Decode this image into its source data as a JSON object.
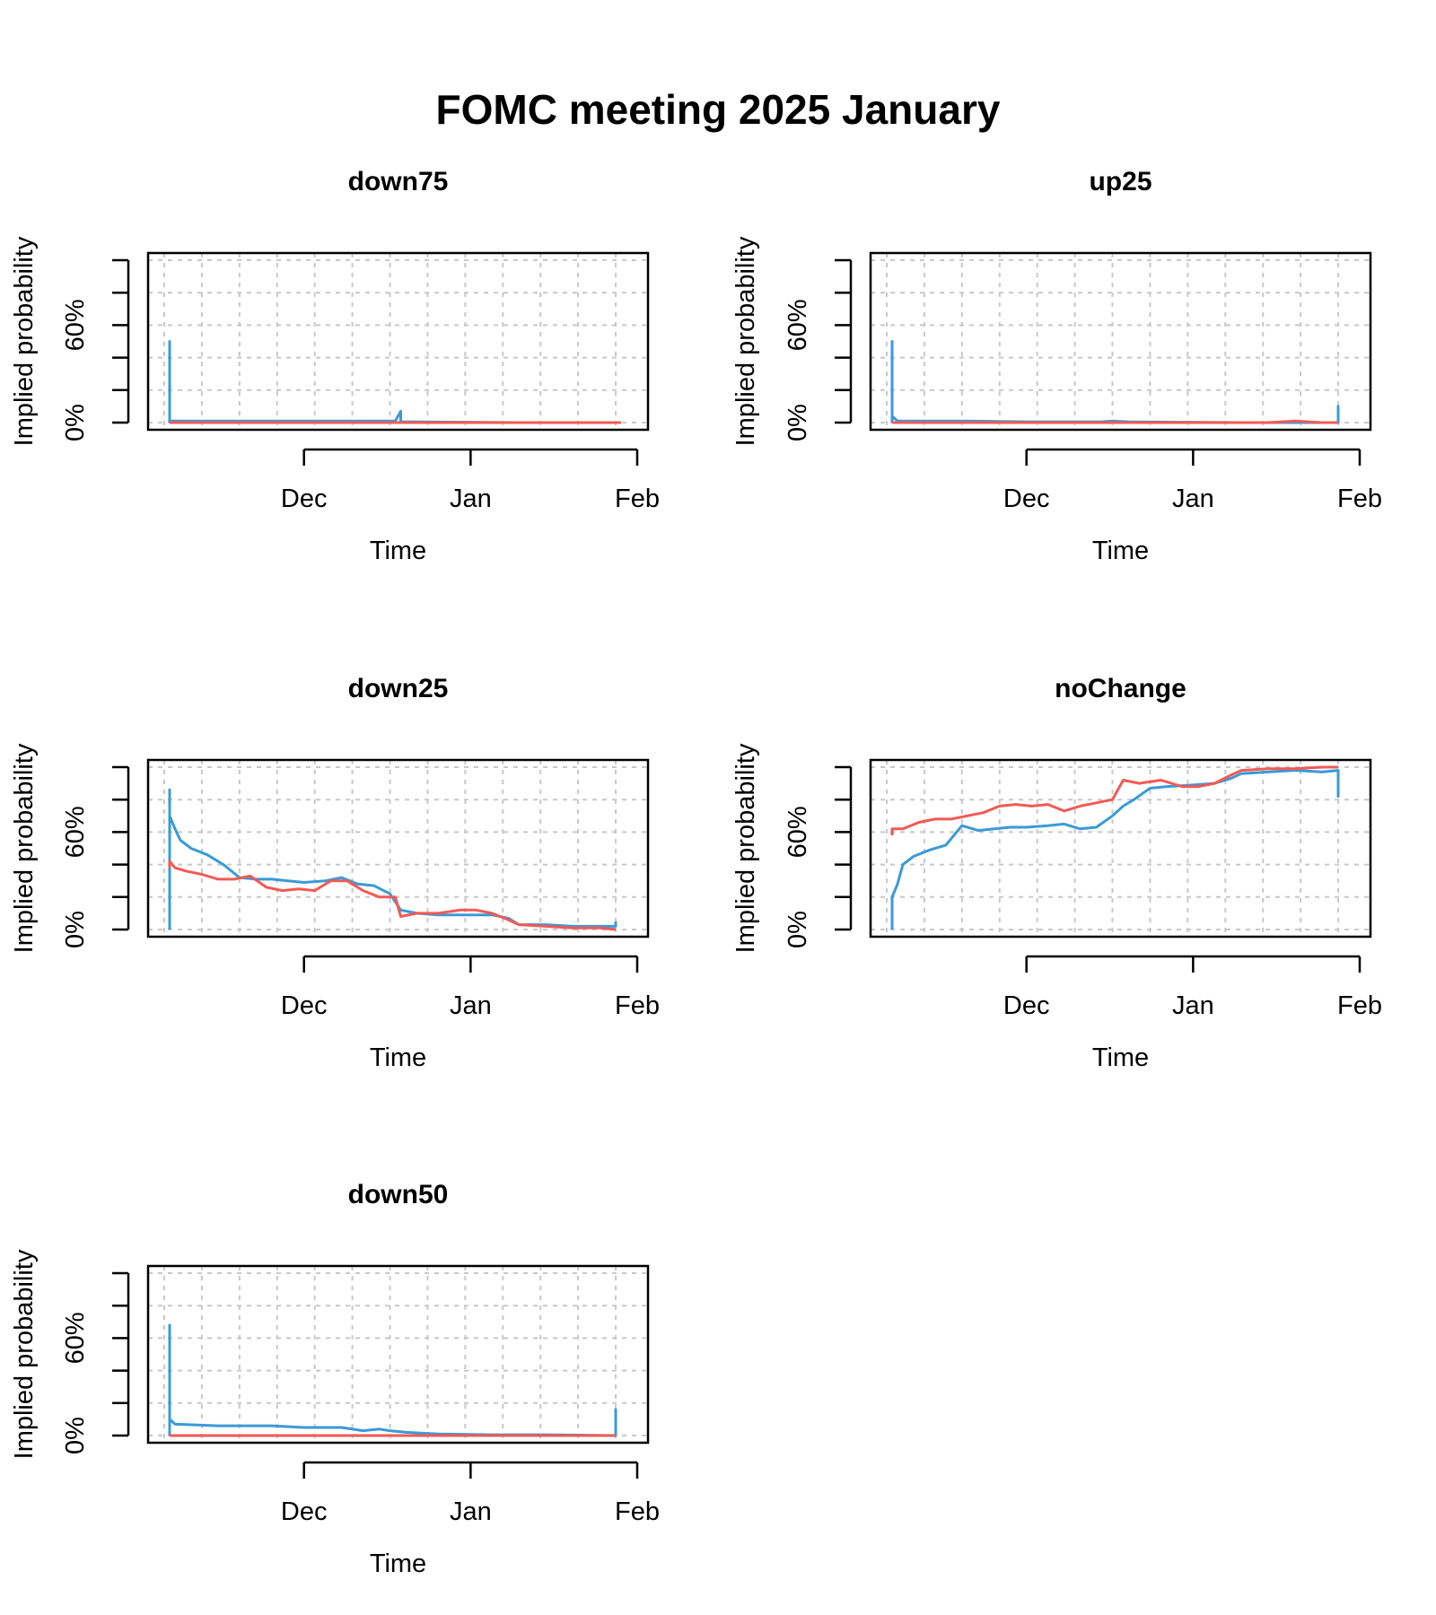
{
  "figure": {
    "title": "FOMC meeting 2025 January"
  },
  "colors": {
    "series_blue": "#3a9ad8",
    "series_red": "#f25a55",
    "grid": "#c8c8c8",
    "axis": "#000000"
  },
  "chart_data": [
    {
      "type": "line",
      "title": "down75",
      "xlabel": "Time",
      "ylabel": "Implied probability",
      "x_ticks": [
        {
          "date": "2024-12-01",
          "label": "Dec"
        },
        {
          "date": "2025-01-01",
          "label": "Jan"
        },
        {
          "date": "2025-02-01",
          "label": "Feb"
        }
      ],
      "xlim": [
        "2024-11-05",
        "2025-01-31"
      ],
      "y_ticks": [
        0,
        0.2,
        0.4,
        0.6,
        0.8,
        1.0
      ],
      "y_tick_labels": [
        {
          "value": 0,
          "label": "0%"
        },
        {
          "value": 0.6,
          "label": "60%"
        }
      ],
      "ylim": [
        0,
        1.0
      ],
      "grid": true,
      "series": [
        {
          "color": "blue",
          "points": [
            [
              "2024-11-06",
              0.0
            ],
            [
              "2024-11-06",
              0.5
            ],
            [
              "2024-11-06",
              0.04
            ],
            [
              "2024-11-06",
              0.01
            ],
            [
              "2024-11-10",
              0.01
            ],
            [
              "2024-11-20",
              0.01
            ],
            [
              "2024-12-01",
              0.01
            ],
            [
              "2024-12-10",
              0.01
            ],
            [
              "2024-12-18",
              0.01
            ],
            [
              "2024-12-19",
              0.07
            ],
            [
              "2024-12-19",
              0.005
            ],
            [
              "2024-12-21",
              0.005
            ],
            [
              "2025-01-10",
              0.0
            ],
            [
              "2025-01-29",
              0.0
            ]
          ]
        },
        {
          "color": "red",
          "points": [
            [
              "2024-11-06",
              0.0
            ],
            [
              "2024-12-01",
              0.0
            ],
            [
              "2025-01-01",
              0.0
            ],
            [
              "2025-01-29",
              0.0
            ]
          ]
        }
      ]
    },
    {
      "type": "line",
      "title": "up25",
      "xlabel": "Time",
      "ylabel": "Implied probability",
      "x_ticks": [
        {
          "date": "2024-12-01",
          "label": "Dec"
        },
        {
          "date": "2025-01-01",
          "label": "Jan"
        },
        {
          "date": "2025-02-01",
          "label": "Feb"
        }
      ],
      "xlim": [
        "2024-11-05",
        "2025-01-31"
      ],
      "y_ticks": [
        0,
        0.2,
        0.4,
        0.6,
        0.8,
        1.0
      ],
      "y_tick_labels": [
        {
          "value": 0,
          "label": "0%"
        },
        {
          "value": 0.6,
          "label": "60%"
        }
      ],
      "ylim": [
        0,
        1.0
      ],
      "grid": true,
      "series": [
        {
          "color": "blue",
          "points": [
            [
              "2024-11-06",
              0.0
            ],
            [
              "2024-11-06",
              0.5
            ],
            [
              "2024-11-06",
              0.04
            ],
            [
              "2024-11-07",
              0.01
            ],
            [
              "2024-11-20",
              0.01
            ],
            [
              "2024-12-01",
              0.005
            ],
            [
              "2024-12-15",
              0.005
            ],
            [
              "2024-12-17",
              0.01
            ],
            [
              "2024-12-20",
              0.005
            ],
            [
              "2025-01-10",
              0.0
            ],
            [
              "2025-01-28",
              0.0
            ],
            [
              "2025-01-28",
              0.1
            ],
            [
              "2025-01-28",
              0.01
            ]
          ]
        },
        {
          "color": "red",
          "points": [
            [
              "2024-11-06",
              0.0
            ],
            [
              "2024-12-01",
              0.0
            ],
            [
              "2025-01-15",
              0.0
            ],
            [
              "2025-01-20",
              0.01
            ],
            [
              "2025-01-25",
              0.0
            ],
            [
              "2025-01-28",
              0.0
            ]
          ]
        }
      ]
    },
    {
      "type": "line",
      "title": "down25",
      "xlabel": "Time",
      "ylabel": "Implied probability",
      "x_ticks": [
        {
          "date": "2024-12-01",
          "label": "Dec"
        },
        {
          "date": "2025-01-01",
          "label": "Jan"
        },
        {
          "date": "2025-02-01",
          "label": "Feb"
        }
      ],
      "xlim": [
        "2024-11-05",
        "2025-01-31"
      ],
      "y_ticks": [
        0,
        0.2,
        0.4,
        0.6,
        0.8,
        1.0
      ],
      "y_tick_labels": [
        {
          "value": 0,
          "label": "0%"
        },
        {
          "value": 0.6,
          "label": "60%"
        }
      ],
      "ylim": [
        0,
        1.0
      ],
      "grid": true,
      "series": [
        {
          "color": "blue",
          "points": [
            [
              "2024-11-06",
              0.0
            ],
            [
              "2024-11-06",
              0.86
            ],
            [
              "2024-11-06",
              0.7
            ],
            [
              "2024-11-07",
              0.62
            ],
            [
              "2024-11-08",
              0.55
            ],
            [
              "2024-11-10",
              0.5
            ],
            [
              "2024-11-13",
              0.46
            ],
            [
              "2024-11-16",
              0.4
            ],
            [
              "2024-11-19",
              0.32
            ],
            [
              "2024-11-22",
              0.31
            ],
            [
              "2024-11-25",
              0.31
            ],
            [
              "2024-11-28",
              0.3
            ],
            [
              "2024-12-01",
              0.29
            ],
            [
              "2024-12-05",
              0.3
            ],
            [
              "2024-12-08",
              0.32
            ],
            [
              "2024-12-11",
              0.28
            ],
            [
              "2024-12-14",
              0.27
            ],
            [
              "2024-12-17",
              0.22
            ],
            [
              "2024-12-19",
              0.12
            ],
            [
              "2024-12-22",
              0.1
            ],
            [
              "2024-12-26",
              0.09
            ],
            [
              "2025-01-01",
              0.09
            ],
            [
              "2025-01-05",
              0.09
            ],
            [
              "2025-01-08",
              0.07
            ],
            [
              "2025-01-10",
              0.03
            ],
            [
              "2025-01-15",
              0.03
            ],
            [
              "2025-01-20",
              0.02
            ],
            [
              "2025-01-28",
              0.02
            ],
            [
              "2025-01-28",
              0.05
            ]
          ]
        },
        {
          "color": "red",
          "points": [
            [
              "2024-11-06",
              0.38
            ],
            [
              "2024-11-06",
              0.42
            ],
            [
              "2024-11-07",
              0.38
            ],
            [
              "2024-11-09",
              0.36
            ],
            [
              "2024-11-12",
              0.34
            ],
            [
              "2024-11-15",
              0.31
            ],
            [
              "2024-11-18",
              0.31
            ],
            [
              "2024-11-21",
              0.33
            ],
            [
              "2024-11-24",
              0.26
            ],
            [
              "2024-11-27",
              0.24
            ],
            [
              "2024-11-30",
              0.25
            ],
            [
              "2024-12-03",
              0.24
            ],
            [
              "2024-12-06",
              0.3
            ],
            [
              "2024-12-09",
              0.3
            ],
            [
              "2024-12-12",
              0.24
            ],
            [
              "2024-12-15",
              0.2
            ],
            [
              "2024-12-18",
              0.2
            ],
            [
              "2024-12-19",
              0.08
            ],
            [
              "2024-12-22",
              0.1
            ],
            [
              "2024-12-26",
              0.1
            ],
            [
              "2024-12-30",
              0.12
            ],
            [
              "2025-01-02",
              0.12
            ],
            [
              "2025-01-05",
              0.1
            ],
            [
              "2025-01-08",
              0.06
            ],
            [
              "2025-01-10",
              0.03
            ],
            [
              "2025-01-15",
              0.02
            ],
            [
              "2025-01-20",
              0.01
            ],
            [
              "2025-01-25",
              0.01
            ],
            [
              "2025-01-28",
              0.0
            ]
          ]
        }
      ]
    },
    {
      "type": "line",
      "title": "noChange",
      "xlabel": "Time",
      "ylabel": "Implied probability",
      "x_ticks": [
        {
          "date": "2024-12-01",
          "label": "Dec"
        },
        {
          "date": "2025-01-01",
          "label": "Jan"
        },
        {
          "date": "2025-02-01",
          "label": "Feb"
        }
      ],
      "xlim": [
        "2024-11-05",
        "2025-01-31"
      ],
      "y_ticks": [
        0,
        0.2,
        0.4,
        0.6,
        0.8,
        1.0
      ],
      "y_tick_labels": [
        {
          "value": 0,
          "label": "0%"
        },
        {
          "value": 0.6,
          "label": "60%"
        }
      ],
      "ylim": [
        0,
        1.0
      ],
      "grid": true,
      "series": [
        {
          "color": "blue",
          "points": [
            [
              "2024-11-06",
              0.0
            ],
            [
              "2024-11-06",
              0.2
            ],
            [
              "2024-11-07",
              0.28
            ],
            [
              "2024-11-08",
              0.4
            ],
            [
              "2024-11-10",
              0.45
            ],
            [
              "2024-11-13",
              0.49
            ],
            [
              "2024-11-16",
              0.52
            ],
            [
              "2024-11-19",
              0.64
            ],
            [
              "2024-11-22",
              0.61
            ],
            [
              "2024-11-25",
              0.62
            ],
            [
              "2024-11-28",
              0.63
            ],
            [
              "2024-12-01",
              0.63
            ],
            [
              "2024-12-05",
              0.64
            ],
            [
              "2024-12-08",
              0.65
            ],
            [
              "2024-12-11",
              0.62
            ],
            [
              "2024-12-14",
              0.63
            ],
            [
              "2024-12-17",
              0.7
            ],
            [
              "2024-12-19",
              0.76
            ],
            [
              "2024-12-21",
              0.8
            ],
            [
              "2024-12-24",
              0.87
            ],
            [
              "2024-12-27",
              0.88
            ],
            [
              "2025-01-01",
              0.89
            ],
            [
              "2025-01-05",
              0.9
            ],
            [
              "2025-01-08",
              0.93
            ],
            [
              "2025-01-10",
              0.96
            ],
            [
              "2025-01-15",
              0.97
            ],
            [
              "2025-01-20",
              0.98
            ],
            [
              "2025-01-25",
              0.97
            ],
            [
              "2025-01-28",
              0.98
            ],
            [
              "2025-01-28",
              0.82
            ],
            [
              "2025-01-28",
              0.96
            ]
          ]
        },
        {
          "color": "red",
          "points": [
            [
              "2024-11-06",
              0.58
            ],
            [
              "2024-11-06",
              0.62
            ],
            [
              "2024-11-08",
              0.62
            ],
            [
              "2024-11-11",
              0.66
            ],
            [
              "2024-11-14",
              0.68
            ],
            [
              "2024-11-17",
              0.68
            ],
            [
              "2024-11-20",
              0.7
            ],
            [
              "2024-11-23",
              0.72
            ],
            [
              "2024-11-26",
              0.76
            ],
            [
              "2024-11-29",
              0.77
            ],
            [
              "2024-12-02",
              0.76
            ],
            [
              "2024-12-05",
              0.77
            ],
            [
              "2024-12-08",
              0.73
            ],
            [
              "2024-12-11",
              0.76
            ],
            [
              "2024-12-14",
              0.78
            ],
            [
              "2024-12-17",
              0.8
            ],
            [
              "2024-12-19",
              0.92
            ],
            [
              "2024-12-22",
              0.9
            ],
            [
              "2024-12-26",
              0.92
            ],
            [
              "2024-12-30",
              0.88
            ],
            [
              "2025-01-02",
              0.88
            ],
            [
              "2025-01-05",
              0.9
            ],
            [
              "2025-01-08",
              0.95
            ],
            [
              "2025-01-10",
              0.98
            ],
            [
              "2025-01-15",
              0.99
            ],
            [
              "2025-01-20",
              0.99
            ],
            [
              "2025-01-25",
              1.0
            ],
            [
              "2025-01-28",
              1.0
            ]
          ]
        }
      ]
    },
    {
      "type": "line",
      "title": "down50",
      "xlabel": "Time",
      "ylabel": "Implied probability",
      "x_ticks": [
        {
          "date": "2024-12-01",
          "label": "Dec"
        },
        {
          "date": "2025-01-01",
          "label": "Jan"
        },
        {
          "date": "2025-02-01",
          "label": "Feb"
        }
      ],
      "xlim": [
        "2024-11-05",
        "2025-01-31"
      ],
      "y_ticks": [
        0,
        0.2,
        0.4,
        0.6,
        0.8,
        1.0
      ],
      "y_tick_labels": [
        {
          "value": 0,
          "label": "0%"
        },
        {
          "value": 0.6,
          "label": "60%"
        }
      ],
      "ylim": [
        0,
        1.0
      ],
      "grid": true,
      "series": [
        {
          "color": "blue",
          "points": [
            [
              "2024-11-06",
              0.0
            ],
            [
              "2024-11-06",
              0.68
            ],
            [
              "2024-11-06",
              0.1
            ],
            [
              "2024-11-07",
              0.07
            ],
            [
              "2024-11-15",
              0.06
            ],
            [
              "2024-11-25",
              0.06
            ],
            [
              "2024-12-01",
              0.05
            ],
            [
              "2024-12-08",
              0.05
            ],
            [
              "2024-12-12",
              0.03
            ],
            [
              "2024-12-15",
              0.04
            ],
            [
              "2024-12-17",
              0.03
            ],
            [
              "2024-12-20",
              0.02
            ],
            [
              "2024-12-26",
              0.01
            ],
            [
              "2025-01-05",
              0.005
            ],
            [
              "2025-01-15",
              0.005
            ],
            [
              "2025-01-28",
              0.0
            ],
            [
              "2025-01-28",
              0.16
            ],
            [
              "2025-01-28",
              0.0
            ]
          ]
        },
        {
          "color": "red",
          "points": [
            [
              "2024-11-06",
              0.0
            ],
            [
              "2024-12-01",
              0.0
            ],
            [
              "2025-01-01",
              0.0
            ],
            [
              "2025-01-28",
              0.0
            ]
          ]
        }
      ]
    }
  ]
}
